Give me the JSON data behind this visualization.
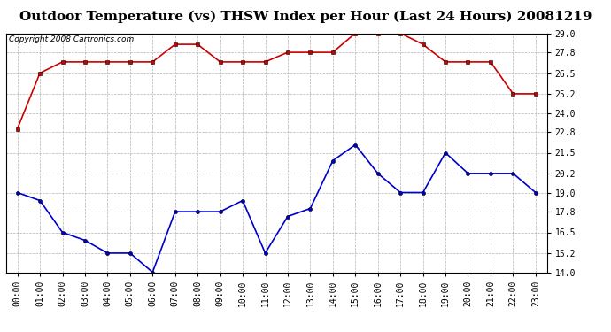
{
  "title": "Outdoor Temperature (vs) THSW Index per Hour (Last 24 Hours) 20081219",
  "copyright": "Copyright 2008 Cartronics.com",
  "x_labels": [
    "00:00",
    "01:00",
    "02:00",
    "03:00",
    "04:00",
    "05:00",
    "06:00",
    "07:00",
    "08:00",
    "09:00",
    "10:00",
    "11:00",
    "12:00",
    "13:00",
    "14:00",
    "15:00",
    "16:00",
    "17:00",
    "18:00",
    "19:00",
    "20:00",
    "21:00",
    "22:00",
    "23:00"
  ],
  "red_data": [
    23.0,
    26.5,
    27.2,
    27.2,
    27.2,
    27.2,
    27.2,
    28.3,
    28.3,
    27.2,
    27.2,
    27.2,
    27.8,
    27.8,
    27.8,
    29.0,
    29.0,
    29.0,
    28.3,
    27.2,
    27.2,
    27.2,
    25.2,
    25.2
  ],
  "blue_data": [
    19.0,
    18.5,
    16.5,
    16.0,
    15.2,
    15.2,
    14.0,
    17.8,
    17.8,
    17.8,
    18.5,
    15.2,
    17.5,
    18.0,
    21.0,
    22.0,
    20.2,
    19.0,
    19.0,
    21.5,
    20.2,
    20.2,
    20.2,
    19.0
  ],
  "ylim": [
    14.0,
    29.0
  ],
  "yticks": [
    14.0,
    15.2,
    16.5,
    17.8,
    19.0,
    20.2,
    21.5,
    22.8,
    24.0,
    25.2,
    26.5,
    27.8,
    29.0
  ],
  "red_color": "#cc0000",
  "blue_color": "#0000cc",
  "bg_color": "#ffffff",
  "plot_bg_color": "#ffffff",
  "grid_color": "#aaaaaa",
  "title_fontsize": 11,
  "copyright_fontsize": 6.5,
  "tick_fontsize": 7,
  "marker_size": 3
}
